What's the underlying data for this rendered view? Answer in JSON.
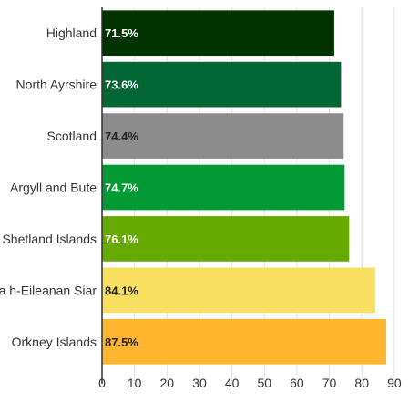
{
  "chart_data": {
    "type": "bar",
    "orientation": "horizontal",
    "title": "",
    "xlabel": "",
    "ylabel": "",
    "categories": [
      "Highland",
      "North Ayrshire",
      "Scotland",
      "Argyll and Bute",
      "Shetland Islands",
      "Na h-Eileanan Siar",
      "Orkney Islands"
    ],
    "values": [
      71.5,
      73.6,
      74.4,
      74.7,
      76.1,
      84.1,
      87.5
    ],
    "value_labels": [
      "71.5%",
      "73.6%",
      "74.4%",
      "74.7%",
      "76.1%",
      "84.1%",
      "87.5%"
    ],
    "colors": [
      "#003300",
      "#006633",
      "#8c8c8c",
      "#009933",
      "#66aa00",
      "#f7e060",
      "#ffb52e"
    ],
    "value_label_colors": [
      "#ffffff",
      "#ffffff",
      "#222222",
      "#ffffff",
      "#ffffff",
      "#222222",
      "#222222"
    ],
    "xlim": [
      0,
      92
    ],
    "xticks": [
      0,
      10,
      20,
      30,
      40,
      50,
      60,
      70,
      80,
      90
    ],
    "grid": true,
    "legend": "none"
  }
}
